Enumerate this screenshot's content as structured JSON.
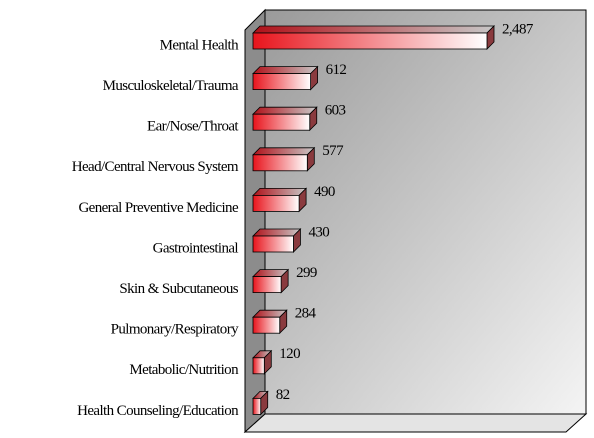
{
  "chart_data": {
    "type": "bar",
    "orientation": "horizontal",
    "categories": [
      "Mental Health",
      "Musculoskeletal/Trauma",
      "Ear/Nose/Throat",
      "Head/Central Nervous System",
      "General Preventive Medicine",
      "Gastrointestinal",
      "Skin & Subcutaneous",
      "Pulmonary/Respiratory",
      "Metabolic/Nutrition",
      "Health Counseling/Education"
    ],
    "values": [
      2487,
      612,
      603,
      577,
      490,
      430,
      299,
      284,
      120,
      82
    ],
    "value_labels": [
      "2,487",
      "612",
      "603",
      "577",
      "490",
      "430",
      "299",
      "284",
      "120",
      "82"
    ],
    "color": "#e8141c"
  }
}
